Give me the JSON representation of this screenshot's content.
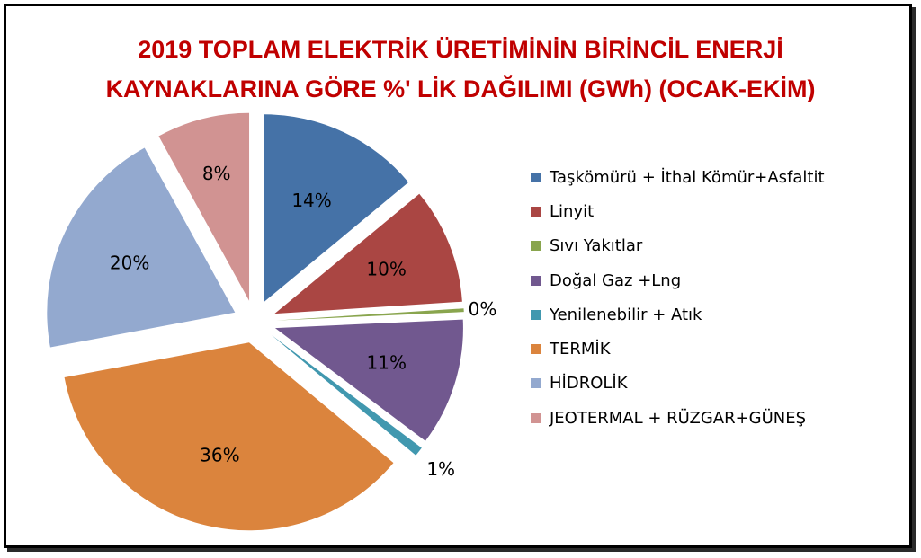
{
  "chart_data": {
    "type": "pie",
    "title_lines": [
      "2019 TOPLAM ELEKTRİK ÜRETİMİNİN BİRİNCİL ENERJİ",
      "KAYNAKLARINA GÖRE %' LİK DAĞILIMI (GWh) (OCAK-EKİM)"
    ],
    "exploded": true,
    "legend_position": "right",
    "slices": [
      {
        "label": "Taşkömürü + İthal Kömür+Asfaltit",
        "value": 14,
        "display": "14%",
        "color": "#4572a7"
      },
      {
        "label": "Linyit",
        "value": 10,
        "display": "10%",
        "color": "#aa4643"
      },
      {
        "label": "Sıvı Yakıtlar",
        "value": 0.3,
        "display": "0%",
        "color": "#89a54e"
      },
      {
        "label": "Doğal Gaz +Lng",
        "value": 11,
        "display": "11%",
        "color": "#71588f"
      },
      {
        "label": "Yenilenebilir + Atık",
        "value": 0.8,
        "display": "1%",
        "color": "#4198af"
      },
      {
        "label": "TERMİK",
        "value": 36,
        "display": "36%",
        "color": "#db843d"
      },
      {
        "label": "HİDROLİK",
        "value": 20,
        "display": "20%",
        "color": "#93a9cf"
      },
      {
        "label": "JEOTERMAL + RÜZGAR+GÜNEŞ",
        "value": 8,
        "display": "8%",
        "color": "#d19392"
      }
    ]
  }
}
